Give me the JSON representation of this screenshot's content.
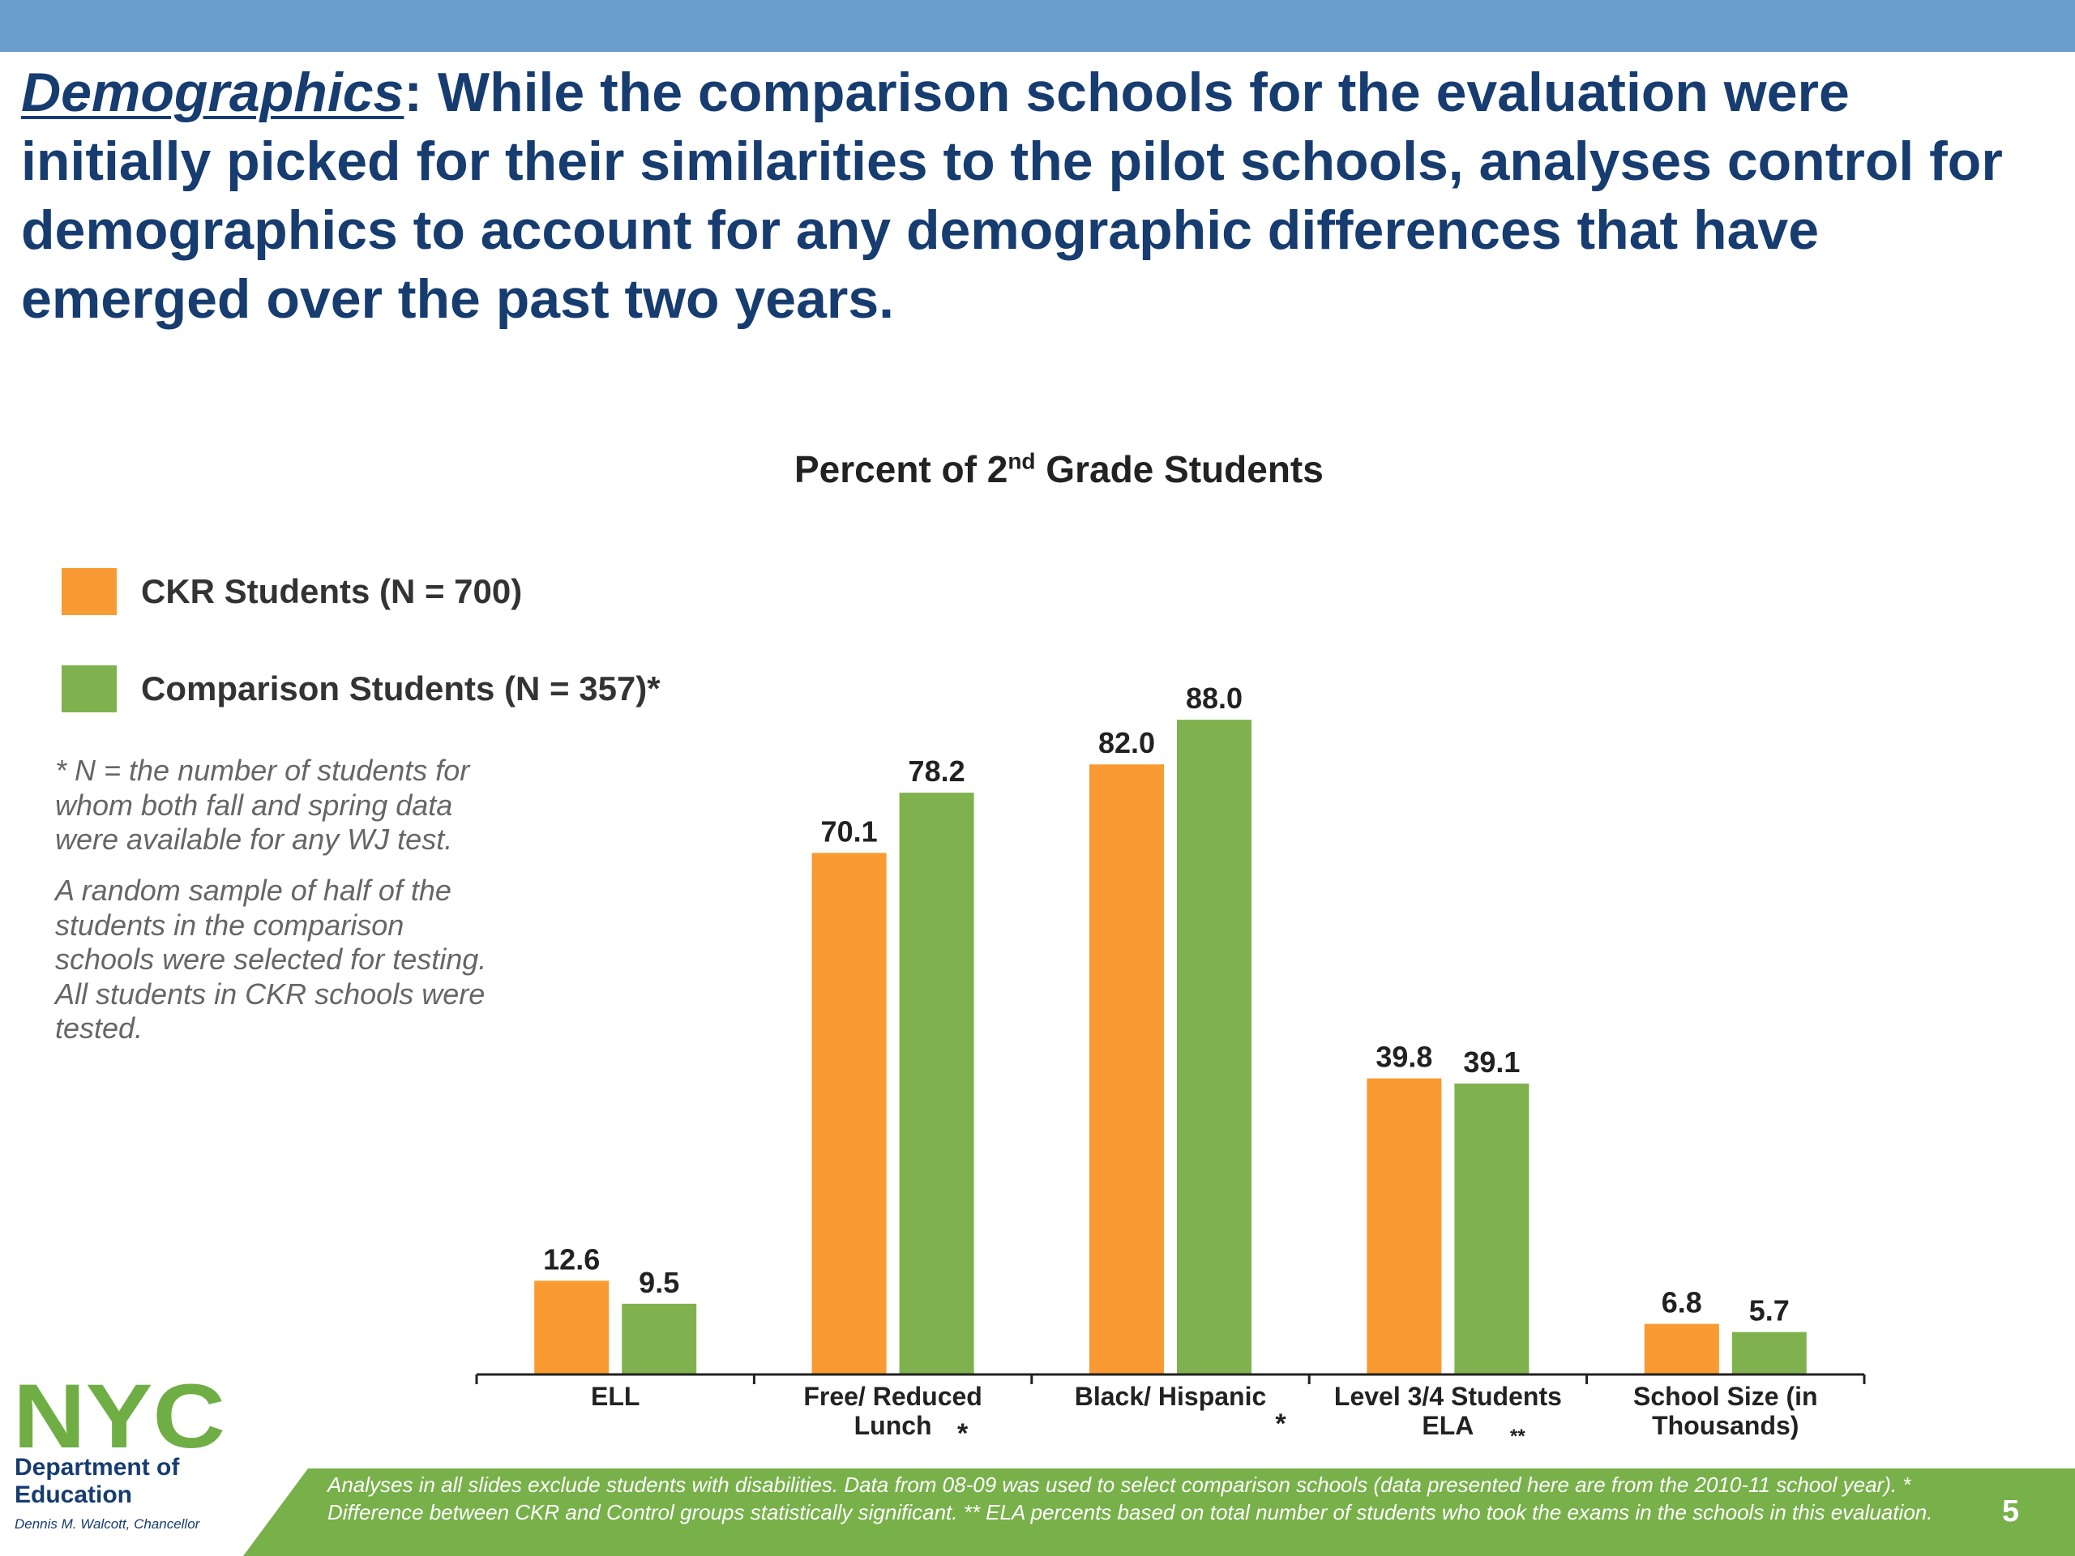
{
  "slide": {
    "heading_keyword": "Demographics",
    "heading_text": ": While the comparison schools for the evaluation were initially picked for their similarities to the pilot schools, analyses control for demographics to account for any demographic differences that have emerged over the past two years.",
    "note1": "* N = the number of students for whom both fall and spring data were available for any WJ test.",
    "note2": "A random sample of half of the students in the comparison schools were selected for testing. All students in CKR schools were tested.",
    "footnote": "Analyses in all slides exclude students with disabilities. Data from 08-09 was used to select comparison schools (data presented here are from the 2010-11 school year). * Difference between CKR and Control groups statistically significant. ** ELA percents based on total number of students who took the exams in the schools in this evaluation.",
    "page_number": "5",
    "logo": {
      "text": "NYC",
      "dept": "Department of Education",
      "chancellor": "Dennis M. Walcott, Chancellor"
    },
    "colors": {
      "top_bar": "#6b9dcc",
      "heading": "#163c70",
      "footer_band": "#78b04a",
      "logo": "#6fae44"
    }
  },
  "chart_data": {
    "type": "bar",
    "title_main": "Percent of 2",
    "title_sup": "nd",
    "title_rest": " Grade Students",
    "categories": [
      "ELL",
      "Free/ Reduced Lunch",
      "Black/ Hispanic",
      "Level 3/4 Students ELA",
      "School Size (in Thousands)"
    ],
    "category_lines": [
      [
        "ELL"
      ],
      [
        "Free/ Reduced",
        "Lunch"
      ],
      [
        "Black/ Hispanic"
      ],
      [
        "Level 3/4 Students",
        "ELA"
      ],
      [
        "School Size (in",
        "Thousands)"
      ]
    ],
    "markers": [
      "",
      "*",
      "*",
      "**",
      ""
    ],
    "series": [
      {
        "name": "CKR Students (N = 700)",
        "color": "#f99a32",
        "values": [
          12.6,
          70.1,
          82.0,
          39.8,
          6.8
        ]
      },
      {
        "name": "Comparison Students (N = 357)*",
        "color": "#7fb24f",
        "values": [
          9.5,
          78.2,
          88.0,
          39.1,
          5.7
        ]
      }
    ],
    "ylim": [
      0,
      100
    ],
    "grid": false,
    "legend_position": "left"
  }
}
